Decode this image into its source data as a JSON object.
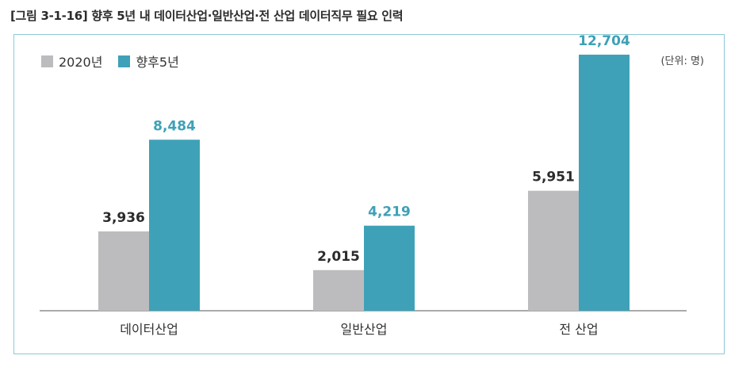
{
  "figure_title": "[그림 3-1-16] 향후 5년 내 데이터산업·일반산업·전 산업 데이터직무 필요 인력",
  "unit_label": "(단위: 명)",
  "colors": {
    "2020년": "#bcbcbf",
    "향후5년": "#3ea1b7",
    "frame": "#8dcad6",
    "value_2020": "#2b2b2b",
    "value_future": "#3ea1b7"
  },
  "chart_data": {
    "type": "bar",
    "categories": [
      "데이터산업",
      "일반산업",
      "전 산업"
    ],
    "series": [
      {
        "name": "2020년",
        "values": [
          3936,
          2015,
          5951
        ],
        "labels": [
          "3,936",
          "2,015",
          "5,951"
        ]
      },
      {
        "name": "향후5년",
        "values": [
          8484,
          4219,
          12704
        ],
        "labels": [
          "8,484",
          "4,219",
          "12,704"
        ]
      }
    ],
    "ylim": [
      0,
      14000
    ],
    "grid": false,
    "legend": "top-left"
  }
}
